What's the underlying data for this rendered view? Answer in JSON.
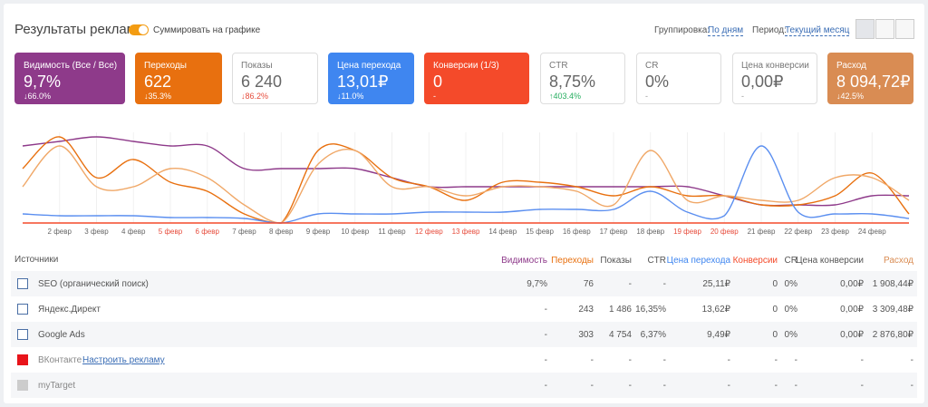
{
  "header": {
    "title": "Результаты рекламы",
    "toggle_label": "Суммировать на графике",
    "grouping_label": "Группировка:",
    "grouping_value": "По дням",
    "period_label": "Период:",
    "period_value": "Текущий месяц"
  },
  "cards": [
    {
      "label": "Видимость (Все / Все)",
      "value": "9,7%",
      "change": "↓66.0%",
      "color": "#8e3a8a"
    },
    {
      "label": "Переходы",
      "value": "622",
      "change": "↓35.3%",
      "color": "#e8700f"
    },
    {
      "label": "Показы",
      "value": "6 240",
      "change": "↓86.2%",
      "color": "#ffffff",
      "change_color": "#e74c3c"
    },
    {
      "label": "Цена перехода",
      "value": "13,01₽",
      "change": "↓11.0%",
      "color": "#3f86f0"
    },
    {
      "label": "Конверсии (1/3)",
      "value": "0",
      "change": "-",
      "color": "#f44a2a"
    },
    {
      "label": "CTR",
      "value": "8,75%",
      "change": "↑403.4%",
      "color": "#ffffff",
      "change_color": "#27ae60"
    },
    {
      "label": "CR",
      "value": "0%",
      "change": "-",
      "color": "#ffffff",
      "change_color": "#999999"
    },
    {
      "label": "Цена конверсии",
      "value": "0,00₽",
      "change": "-",
      "color": "#ffffff",
      "change_color": "#999999"
    },
    {
      "label": "Расход",
      "value": "8 094,72₽",
      "change": "↓42.5%",
      "color": "#d98c53"
    }
  ],
  "chart_data": {
    "type": "line",
    "categories": [
      null,
      "2 февр",
      "3 февр",
      "4 февр",
      "5 февр",
      "6 февр",
      "7 февр",
      "8 февр",
      "9 февр",
      "10 февр",
      "11 февр",
      "12 февр",
      "13 февр",
      "14 февр",
      "15 февр",
      "16 февр",
      "17 февр",
      "18 февр",
      "19 февр",
      "20 февр",
      "21 февр",
      "22 февр",
      "23 февр",
      "24 февр",
      null
    ],
    "category_colors": [
      null,
      "#666",
      "#666",
      "#666",
      "#e74c3c",
      "#e74c3c",
      "#666",
      "#666",
      "#666",
      "#666",
      "#666",
      "#e74c3c",
      "#e74c3c",
      "#666",
      "#666",
      "#666",
      "#666",
      "#666",
      "#e74c3c",
      "#e74c3c",
      "#666",
      "#666",
      "#666",
      "#666",
      null
    ],
    "ylim": [
      0,
      100
    ],
    "series": [
      {
        "color": "#8e3a8a",
        "values": [
          85,
          90,
          95,
          90,
          85,
          85,
          60,
          60,
          60,
          60,
          50,
          40,
          40,
          40,
          40,
          40,
          40,
          40,
          40,
          30,
          20,
          20,
          20,
          30,
          30
        ]
      },
      {
        "color": "#e8700f",
        "values": [
          60,
          95,
          50,
          70,
          45,
          35,
          10,
          0,
          80,
          80,
          50,
          40,
          25,
          45,
          45,
          40,
          30,
          40,
          30,
          30,
          20,
          20,
          30,
          55,
          10
        ]
      },
      {
        "color": "#f0a868",
        "values": [
          40,
          85,
          40,
          40,
          60,
          50,
          20,
          0,
          65,
          80,
          40,
          40,
          30,
          40,
          40,
          35,
          20,
          80,
          25,
          30,
          25,
          25,
          50,
          50,
          25
        ]
      },
      {
        "color": "#5b8ff0",
        "values": [
          10,
          8,
          8,
          8,
          6,
          6,
          5,
          0,
          10,
          10,
          10,
          12,
          12,
          12,
          15,
          15,
          15,
          35,
          12,
          8,
          85,
          12,
          10,
          10,
          5
        ]
      },
      {
        "color": "#f44a2a",
        "values": [
          0,
          0,
          0,
          0,
          0,
          0,
          0,
          0,
          0,
          0,
          0,
          0,
          0,
          0,
          0,
          0,
          0,
          0,
          0,
          0,
          0,
          0,
          0,
          0,
          0
        ]
      }
    ]
  },
  "table": {
    "source_label": "Источники",
    "columns": [
      {
        "label": "Видимость",
        "color": "#8e3a8a"
      },
      {
        "label": "Переходы",
        "color": "#e8700f"
      },
      {
        "label": "Показы",
        "color": "#555"
      },
      {
        "label": "CTR",
        "color": "#555"
      },
      {
        "label": "Цена перехода",
        "color": "#3f86f0"
      },
      {
        "label": "Конверсии",
        "color": "#f44a2a"
      },
      {
        "label": "CR",
        "color": "#555"
      },
      {
        "label": "Цена конверсии",
        "color": "#555"
      },
      {
        "label": "Расход",
        "color": "#d98c53"
      }
    ],
    "rows": [
      {
        "name": "SEO (органический поиск)",
        "icon": "#4a6fa5",
        "cells": [
          "9,7%",
          "76",
          "-",
          "-",
          "25,11₽",
          "0",
          "0%",
          "0,00₽",
          "1 908,44₽"
        ]
      },
      {
        "name": "Яндекс.Директ",
        "icon": "#4a6fa5",
        "cells": [
          "-",
          "243",
          "1 486",
          "16,35%",
          "13,62₽",
          "0",
          "0%",
          "0,00₽",
          "3 309,48₽"
        ]
      },
      {
        "name": "Google Ads",
        "icon": "#4a6fa5",
        "cells": [
          "-",
          "303",
          "4 754",
          "6,37%",
          "9,49₽",
          "0",
          "0%",
          "0,00₽",
          "2 876,80₽"
        ]
      },
      {
        "name": "ВКонтакте",
        "link": "Настроить рекламу",
        "icon": "#e8141a",
        "cells": [
          "-",
          "-",
          "-",
          "-",
          "-",
          "-",
          "-",
          "-",
          "-"
        ]
      },
      {
        "name": "myTarget",
        "icon": "#cccccc",
        "cells": [
          "-",
          "-",
          "-",
          "-",
          "-",
          "-",
          "-",
          "-",
          "-"
        ]
      }
    ]
  }
}
